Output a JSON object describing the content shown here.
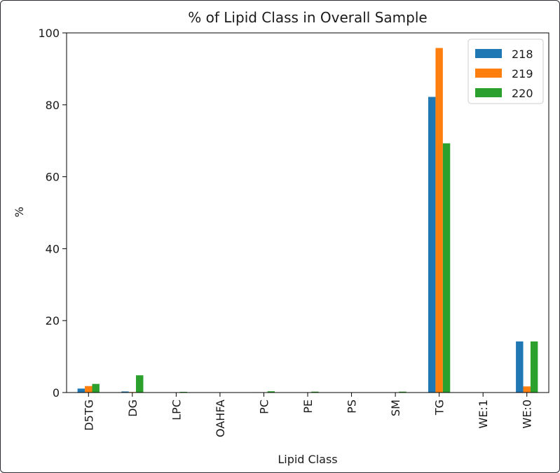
{
  "chart_data": {
    "type": "bar",
    "title": "% of Lipid Class in Overall Sample",
    "xlabel": "Lipid Class",
    "ylabel": "%",
    "ylim": [
      0,
      100
    ],
    "yticks": [
      0,
      20,
      40,
      60,
      80,
      100
    ],
    "grid": false,
    "legend_position": "top-right",
    "categories": [
      "D5TG",
      "DG",
      "LPC",
      "OAHFA",
      "PC",
      "PE",
      "PS",
      "SM",
      "TG",
      "WE:1",
      "WE:0"
    ],
    "series": [
      {
        "name": "218",
        "color": "#1f77b4",
        "values": [
          1.1,
          0.3,
          0.05,
          0.03,
          0.1,
          0.05,
          0.02,
          0.05,
          82.2,
          0.02,
          14.2
        ]
      },
      {
        "name": "219",
        "color": "#ff7f0e",
        "values": [
          1.8,
          0.15,
          0.03,
          0.02,
          0.1,
          0.05,
          0.01,
          0.03,
          95.8,
          0.01,
          1.7
        ]
      },
      {
        "name": "220",
        "color": "#2ca02c",
        "values": [
          2.4,
          4.8,
          0.2,
          0.05,
          0.35,
          0.25,
          0.05,
          0.25,
          69.3,
          0.02,
          14.2
        ]
      }
    ]
  }
}
